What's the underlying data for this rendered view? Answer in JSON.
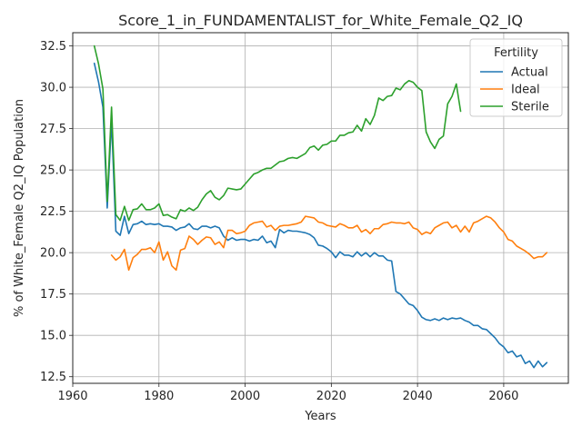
{
  "chart_data": {
    "type": "line",
    "title": "Score_1_in_FUNDAMENTALIST_for_White_Female_Q2_IQ",
    "xlabel": "Years",
    "ylabel": "% of White_Female Q2_IQ Population",
    "xlim": [
      1960,
      2075
    ],
    "ylim": [
      12.1,
      33.3
    ],
    "xticks": [
      1960,
      1980,
      2000,
      2020,
      2040,
      2060
    ],
    "yticks": [
      12.5,
      15.0,
      17.5,
      20.0,
      22.5,
      25.0,
      27.5,
      30.0,
      32.5
    ],
    "ytick_labels": [
      "12.5",
      "15.0",
      "17.5",
      "20.0",
      "22.5",
      "25.0",
      "27.5",
      "30.0",
      "32.5"
    ],
    "grid": true,
    "legend": {
      "title": "Fertility",
      "position": "top-right"
    },
    "series": [
      {
        "name": "Actual",
        "color": "#1f77b4",
        "x": [
          1965,
          1966,
          1967,
          1968,
          1969,
          1970,
          1971,
          1972,
          1973,
          1974,
          1975,
          1976,
          1977,
          1978,
          1979,
          1980,
          1981,
          1982,
          1983,
          1984,
          1985,
          1986,
          1987,
          1988,
          1989,
          1990,
          1991,
          1992,
          1993,
          1994,
          1995,
          1996,
          1997,
          1998,
          1999,
          2000,
          2001,
          2002,
          2003,
          2004,
          2005,
          2006,
          2007,
          2008,
          2009,
          2010,
          2011,
          2012,
          2013,
          2014,
          2015,
          2016,
          2017,
          2018,
          2019,
          2020,
          2021,
          2022,
          2023,
          2024,
          2025,
          2026,
          2027,
          2028,
          2029,
          2030,
          2031,
          2032,
          2033,
          2034,
          2035,
          2036,
          2037,
          2038,
          2039,
          2040,
          2041,
          2042,
          2043,
          2044,
          2045,
          2046,
          2047,
          2048,
          2049,
          2050,
          2051,
          2052,
          2053,
          2054,
          2055,
          2056,
          2057,
          2058,
          2059,
          2060,
          2061,
          2062,
          2063,
          2064,
          2065,
          2066,
          2067,
          2068,
          2069,
          2070
        ],
        "values": [
          31.45,
          30.3,
          28.8,
          22.7,
          28.0,
          21.3,
          21.05,
          22.2,
          21.15,
          21.7,
          21.75,
          21.9,
          21.7,
          21.75,
          21.7,
          21.75,
          21.6,
          21.6,
          21.55,
          21.35,
          21.5,
          21.55,
          21.75,
          21.45,
          21.4,
          21.6,
          21.6,
          21.5,
          21.6,
          21.5,
          21.0,
          20.75,
          20.9,
          20.75,
          20.8,
          20.8,
          20.7,
          20.8,
          20.75,
          21.0,
          20.6,
          20.7,
          20.3,
          21.4,
          21.2,
          21.35,
          21.3,
          21.3,
          21.25,
          21.2,
          21.1,
          20.9,
          20.45,
          20.4,
          20.25,
          20.05,
          19.7,
          20.05,
          19.85,
          19.85,
          19.75,
          20.05,
          19.8,
          20.0,
          19.75,
          20.0,
          19.8,
          19.8,
          19.55,
          19.5,
          17.65,
          17.5,
          17.2,
          16.9,
          16.8,
          16.5,
          16.1,
          15.95,
          15.9,
          16.0,
          15.9,
          16.05,
          15.95,
          16.05,
          16.0,
          16.05,
          15.9,
          15.8,
          15.6,
          15.6,
          15.4,
          15.35,
          15.1,
          14.85,
          14.5,
          14.3,
          13.95,
          14.05,
          13.7,
          13.8,
          13.3,
          13.45,
          13.05,
          13.45,
          13.1,
          13.35
        ]
      },
      {
        "name": "Ideal",
        "color": "#ff7f0e",
        "x": [
          1969,
          1970,
          1971,
          1972,
          1973,
          1974,
          1975,
          1976,
          1977,
          1978,
          1979,
          1980,
          1981,
          1982,
          1983,
          1984,
          1985,
          1986,
          1987,
          1988,
          1989,
          1990,
          1991,
          1992,
          1993,
          1994,
          1995,
          1996,
          1997,
          1998,
          1999,
          2000,
          2001,
          2002,
          2003,
          2004,
          2005,
          2006,
          2007,
          2008,
          2009,
          2010,
          2011,
          2012,
          2013,
          2014,
          2015,
          2016,
          2017,
          2018,
          2019,
          2020,
          2021,
          2022,
          2023,
          2024,
          2025,
          2026,
          2027,
          2028,
          2029,
          2030,
          2031,
          2032,
          2033,
          2034,
          2035,
          2036,
          2037,
          2038,
          2039,
          2040,
          2041,
          2042,
          2043,
          2044,
          2045,
          2046,
          2047,
          2048,
          2049,
          2050,
          2051,
          2052,
          2053,
          2054,
          2055,
          2056,
          2057,
          2058,
          2059,
          2060,
          2061,
          2062,
          2063,
          2064,
          2065,
          2066,
          2067,
          2068,
          2069,
          2070
        ],
        "values": [
          19.85,
          19.55,
          19.75,
          20.2,
          18.95,
          19.7,
          19.9,
          20.2,
          20.2,
          20.3,
          20.0,
          20.65,
          19.55,
          20.05,
          19.2,
          18.95,
          20.15,
          20.25,
          21.0,
          20.8,
          20.5,
          20.75,
          20.95,
          20.9,
          20.5,
          20.65,
          20.3,
          21.35,
          21.35,
          21.15,
          21.2,
          21.3,
          21.65,
          21.8,
          21.85,
          21.9,
          21.55,
          21.65,
          21.35,
          21.6,
          21.65,
          21.65,
          21.7,
          21.75,
          21.85,
          22.2,
          22.15,
          22.1,
          21.85,
          21.8,
          21.65,
          21.6,
          21.55,
          21.75,
          21.65,
          21.5,
          21.5,
          21.65,
          21.25,
          21.4,
          21.15,
          21.45,
          21.45,
          21.7,
          21.75,
          21.85,
          21.8,
          21.8,
          21.75,
          21.85,
          21.5,
          21.4,
          21.1,
          21.25,
          21.15,
          21.5,
          21.65,
          21.8,
          21.85,
          21.5,
          21.65,
          21.25,
          21.6,
          21.25,
          21.8,
          21.9,
          22.05,
          22.2,
          22.1,
          21.85,
          21.5,
          21.25,
          20.8,
          20.7,
          20.4,
          20.25,
          20.1,
          19.9,
          19.65,
          19.75,
          19.75,
          20.0
        ]
      },
      {
        "name": "Sterile",
        "color": "#2ca02c",
        "x": [
          1965,
          1966,
          1967,
          1968,
          1969,
          1970,
          1971,
          1972,
          1973,
          1974,
          1975,
          1976,
          1977,
          1978,
          1979,
          1980,
          1981,
          1982,
          1983,
          1984,
          1985,
          1986,
          1987,
          1988,
          1989,
          1990,
          1991,
          1992,
          1993,
          1994,
          1995,
          1996,
          1997,
          1998,
          1999,
          2000,
          2001,
          2002,
          2003,
          2004,
          2005,
          2006,
          2007,
          2008,
          2009,
          2010,
          2011,
          2012,
          2013,
          2014,
          2015,
          2016,
          2017,
          2018,
          2019,
          2020,
          2021,
          2022,
          2023,
          2024,
          2025,
          2026,
          2027,
          2028,
          2029,
          2030,
          2031,
          2032,
          2033,
          2034,
          2035,
          2036,
          2037,
          2038,
          2039,
          2040,
          2041,
          2042,
          2043,
          2044,
          2045,
          2046,
          2047,
          2048,
          2049,
          2050
        ],
        "values": [
          32.5,
          31.4,
          29.9,
          23.1,
          28.8,
          22.3,
          21.95,
          22.8,
          21.95,
          22.6,
          22.65,
          22.95,
          22.6,
          22.6,
          22.7,
          22.95,
          22.25,
          22.3,
          22.15,
          22.05,
          22.6,
          22.5,
          22.7,
          22.55,
          22.75,
          23.2,
          23.55,
          23.75,
          23.35,
          23.2,
          23.45,
          23.9,
          23.85,
          23.8,
          23.85,
          24.15,
          24.45,
          24.75,
          24.85,
          25.0,
          25.1,
          25.1,
          25.3,
          25.5,
          25.55,
          25.7,
          25.75,
          25.7,
          25.85,
          26.0,
          26.35,
          26.45,
          26.2,
          26.5,
          26.55,
          26.75,
          26.75,
          27.1,
          27.1,
          27.25,
          27.3,
          27.7,
          27.35,
          28.1,
          27.75,
          28.3,
          29.35,
          29.2,
          29.45,
          29.5,
          29.95,
          29.85,
          30.2,
          30.4,
          30.3,
          30.0,
          29.8,
          27.3,
          26.7,
          26.3,
          26.85,
          27.05,
          29.0,
          29.45,
          30.2,
          28.55
        ]
      }
    ]
  }
}
